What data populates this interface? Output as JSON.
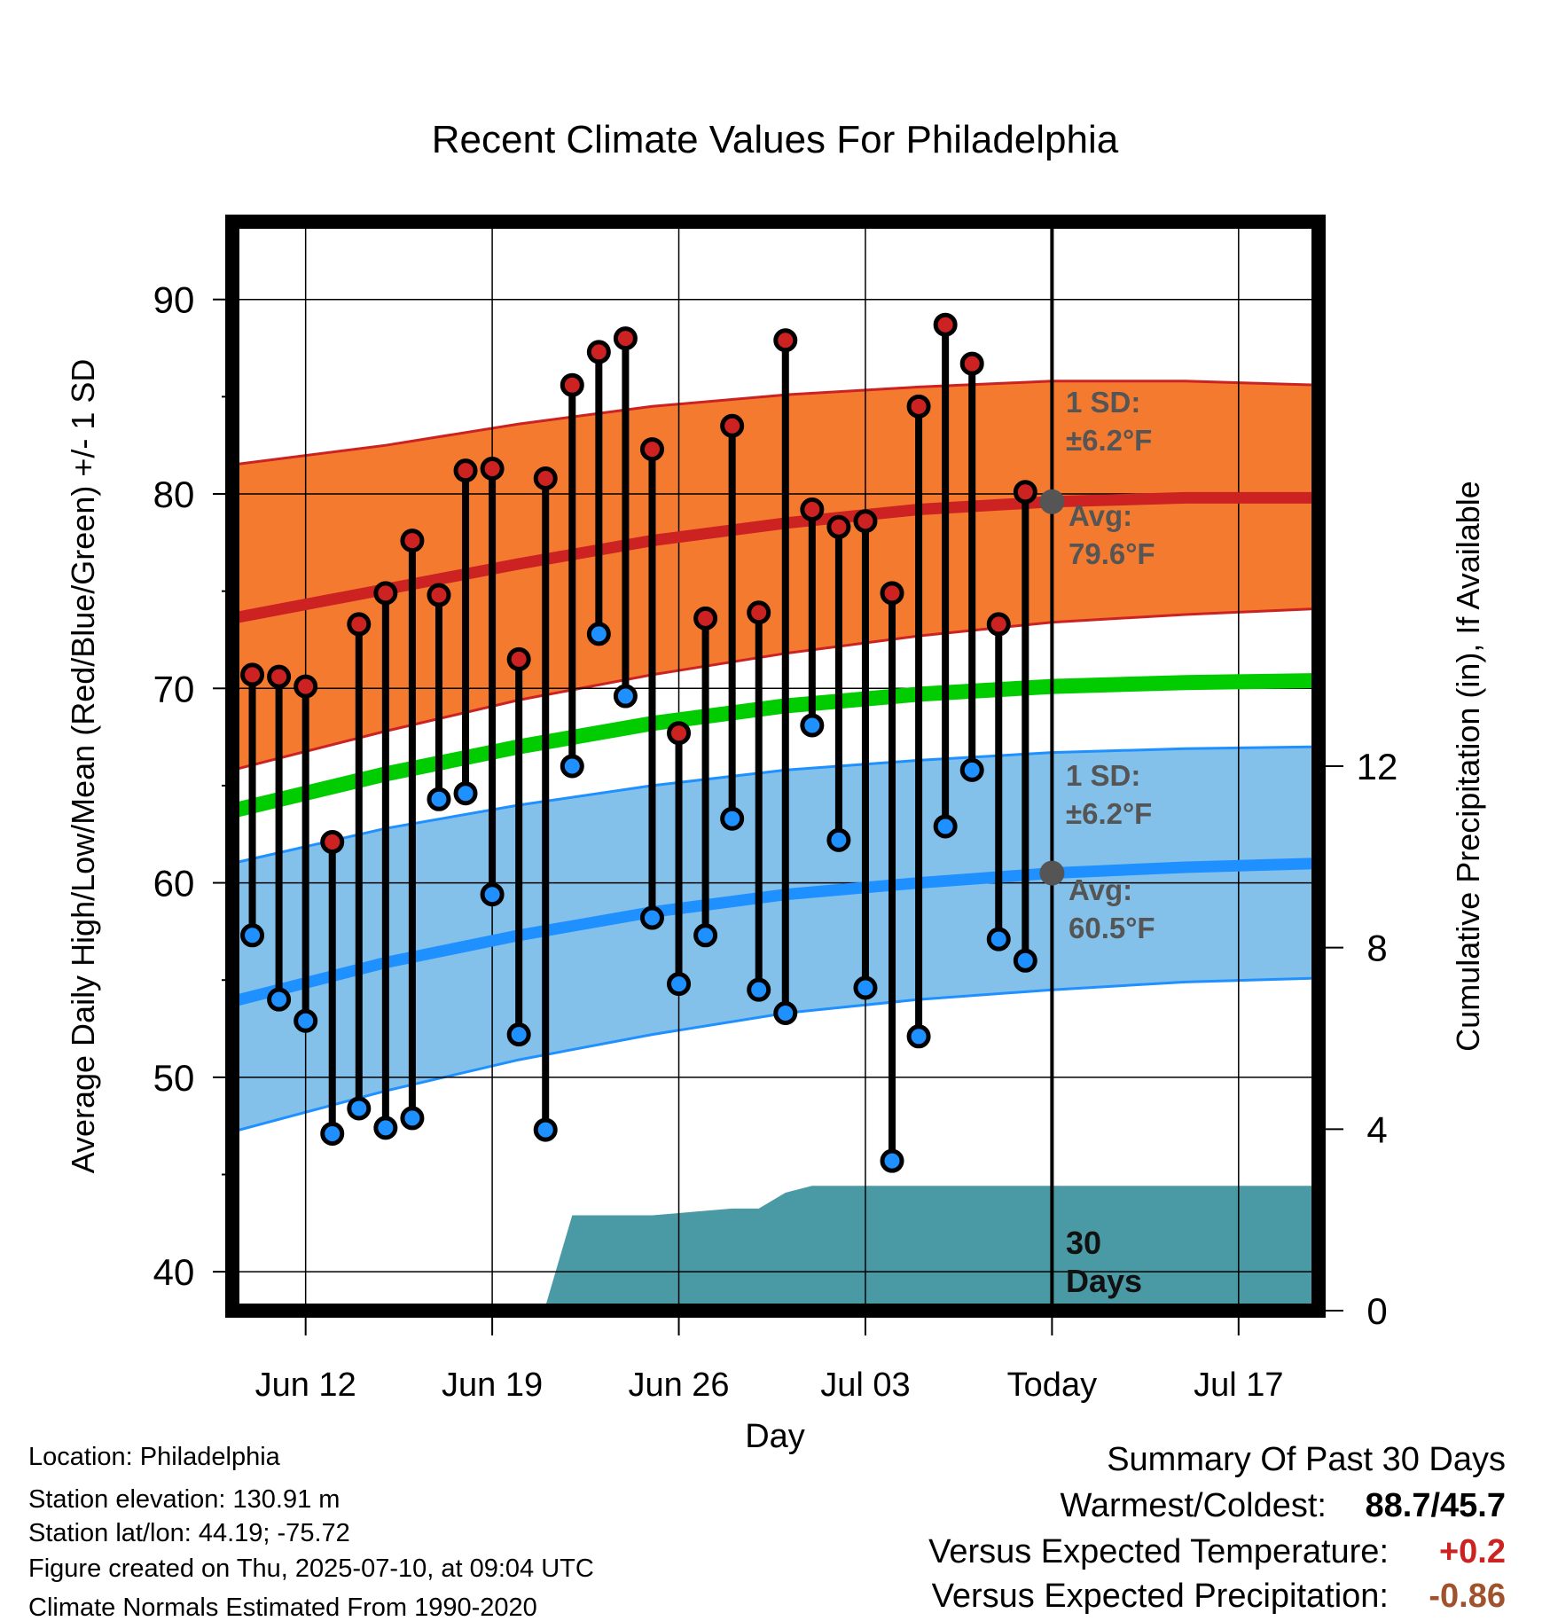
{
  "chart_data": {
    "type": "line",
    "title": "Recent Climate Values For Philadelphia",
    "xlabel": "Day",
    "ylabel": "Average Daily High/Low/Mean (Red/Blue/Green) +/- 1 SD",
    "y2label": "Cumulative Precipitation (in), If Available",
    "ylim": [
      38,
      94
    ],
    "y2lim": [
      0,
      24
    ],
    "yticks": [
      40,
      50,
      60,
      70,
      80,
      90
    ],
    "y2ticks": [
      0,
      4,
      8,
      12
    ],
    "xticks": [
      {
        "day": 2,
        "label": "Jun 12"
      },
      {
        "day": 9,
        "label": "Jun 19"
      },
      {
        "day": 16,
        "label": "Jun 26"
      },
      {
        "day": 23,
        "label": "Jul 03"
      },
      {
        "day": 30,
        "label": "Today"
      },
      {
        "day": 37,
        "label": "Jul 17"
      }
    ],
    "x_range_days": [
      -0.75,
      40
    ],
    "today_day": 30,
    "days": [
      0,
      1,
      2,
      3,
      4,
      5,
      6,
      7,
      8,
      9,
      10,
      11,
      12,
      13,
      14,
      15,
      16,
      17,
      18,
      19,
      20,
      21,
      22,
      23,
      24,
      25,
      26,
      27,
      28,
      29
    ],
    "daily_high": [
      70.7,
      70.6,
      70.1,
      62.1,
      73.3,
      74.9,
      77.6,
      74.8,
      81.2,
      81.3,
      71.5,
      80.8,
      85.6,
      87.3,
      88.0,
      82.3,
      67.7,
      73.6,
      83.5,
      73.9,
      87.9,
      79.2,
      78.3,
      78.6,
      74.9,
      84.5,
      88.7,
      86.7,
      73.3,
      80.1
    ],
    "daily_low": [
      57.3,
      54.0,
      52.9,
      47.1,
      48.4,
      47.4,
      47.9,
      64.3,
      64.6,
      59.4,
      52.2,
      47.3,
      66.0,
      72.8,
      69.6,
      58.2,
      54.8,
      57.3,
      63.3,
      54.5,
      53.3,
      68.1,
      62.2,
      54.6,
      45.7,
      52.1,
      62.9,
      65.8,
      57.1,
      56.0
    ],
    "normal_high": [
      [
        -0.75,
        73.6
      ],
      [
        5,
        75.1
      ],
      [
        10,
        76.4
      ],
      [
        15,
        77.6
      ],
      [
        20,
        78.5
      ],
      [
        25,
        79.2
      ],
      [
        30,
        79.6
      ],
      [
        35,
        79.8
      ],
      [
        40,
        79.8
      ]
    ],
    "normal_high_sd_upper": [
      [
        -0.75,
        81.5
      ],
      [
        5,
        82.5
      ],
      [
        10,
        83.6
      ],
      [
        15,
        84.5
      ],
      [
        20,
        85.1
      ],
      [
        25,
        85.5
      ],
      [
        30,
        85.8
      ],
      [
        35,
        85.8
      ],
      [
        40,
        85.6
      ]
    ],
    "normal_high_sd_lower": [
      [
        -0.75,
        65.8
      ],
      [
        5,
        67.8
      ],
      [
        10,
        69.4
      ],
      [
        15,
        70.7
      ],
      [
        20,
        71.8
      ],
      [
        25,
        72.7
      ],
      [
        30,
        73.4
      ],
      [
        35,
        73.8
      ],
      [
        40,
        74.1
      ]
    ],
    "normal_mean": [
      [
        -0.75,
        63.7
      ],
      [
        5,
        65.6
      ],
      [
        10,
        67.0
      ],
      [
        15,
        68.2
      ],
      [
        20,
        69.1
      ],
      [
        25,
        69.7
      ],
      [
        30,
        70.1
      ],
      [
        35,
        70.3
      ],
      [
        40,
        70.4
      ]
    ],
    "normal_low": [
      [
        -0.75,
        53.9
      ],
      [
        5,
        55.9
      ],
      [
        10,
        57.3
      ],
      [
        15,
        58.5
      ],
      [
        20,
        59.4
      ],
      [
        25,
        60.0
      ],
      [
        30,
        60.5
      ],
      [
        35,
        60.8
      ],
      [
        40,
        61.0
      ]
    ],
    "normal_low_sd_upper": [
      [
        -0.75,
        61.0
      ],
      [
        5,
        62.8
      ],
      [
        10,
        64.0
      ],
      [
        15,
        65.0
      ],
      [
        20,
        65.8
      ],
      [
        25,
        66.3
      ],
      [
        30,
        66.7
      ],
      [
        35,
        66.9
      ],
      [
        40,
        67.0
      ]
    ],
    "normal_low_sd_lower": [
      [
        -0.75,
        47.2
      ],
      [
        5,
        49.3
      ],
      [
        10,
        50.9
      ],
      [
        15,
        52.2
      ],
      [
        20,
        53.3
      ],
      [
        25,
        54.0
      ],
      [
        30,
        54.5
      ],
      [
        35,
        54.9
      ],
      [
        40,
        55.1
      ]
    ],
    "cumulative_precip": [
      [
        9,
        0
      ],
      [
        10,
        0.1
      ],
      [
        11,
        0.1
      ],
      [
        12,
        2.1
      ],
      [
        13,
        2.1
      ],
      [
        14,
        2.1
      ],
      [
        15,
        2.1
      ],
      [
        16,
        2.15
      ],
      [
        17,
        2.2
      ],
      [
        18,
        2.25
      ],
      [
        19,
        2.25
      ],
      [
        20,
        2.6
      ],
      [
        21,
        2.75
      ],
      [
        22,
        2.75
      ],
      [
        23,
        2.75
      ],
      [
        24,
        2.75
      ],
      [
        25,
        2.75
      ],
      [
        26,
        2.75
      ],
      [
        27,
        2.75
      ],
      [
        28,
        2.75
      ],
      [
        29,
        2.75
      ],
      [
        30,
        2.75
      ],
      [
        40,
        2.75
      ]
    ],
    "annotations": {
      "high_sd_label": "1 SD:",
      "high_sd_value": "±6.2°F",
      "high_avg_label": "Avg:",
      "high_avg_value": "79.6°F",
      "high_avg_point": 79.6,
      "low_sd_label": "1 SD:",
      "low_sd_value": "±6.2°F",
      "low_avg_label": "Avg:",
      "low_avg_value": "60.5°F",
      "low_avg_point": 60.5,
      "days_count": "30",
      "days_word": "Days"
    },
    "colors": {
      "high": "#cc2222",
      "high_band": "#f47a30",
      "mean": "#00cc00",
      "low": "#1e90ff",
      "low_band": "#83c1ea",
      "precip": "#4a9aa5",
      "annotation": "#555555",
      "summary_temp": "#cc2222",
      "summary_precip": "#a0522d"
    }
  },
  "footer": {
    "location": "Location: Philadelphia",
    "elevation": "Station elevation: 130.91 m",
    "latlon": "Station lat/lon: 44.19; -75.72",
    "created": "Figure created on Thu, 2025-07-10, at 09:04 UTC",
    "normals": "Climate Normals Estimated From 1990-2020"
  },
  "summary": {
    "heading": "Summary Of Past 30 Days",
    "warm_cold_label": "Warmest/Coldest:",
    "warm_cold_value": "88.7/45.7",
    "temp_label": "Versus Expected Temperature:",
    "temp_value": "+0.2",
    "precip_label": "Versus Expected Precipitation:",
    "precip_value": "-0.86"
  }
}
